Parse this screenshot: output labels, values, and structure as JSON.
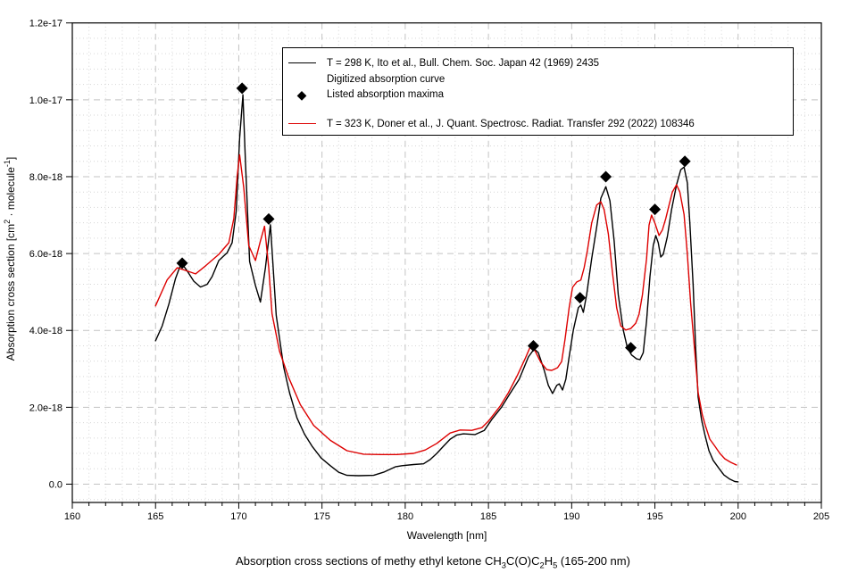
{
  "figure": {
    "title_segments": [
      {
        "t": "Absorption cross sections of methy ethyl ketone CH"
      },
      {
        "t": "3",
        "sub": true
      },
      {
        "t": "C(O)C"
      },
      {
        "t": "2",
        "sub": true
      },
      {
        "t": "H"
      },
      {
        "t": "5",
        "sub": true
      },
      {
        "t": " (165-200 nm)"
      }
    ]
  },
  "chart_data": {
    "type": "line",
    "title": "Absorption cross sections of methy ethyl ketone CH3C(O)C2H5 (165-200 nm)",
    "xlabel": "Wavelength [nm]",
    "ylabel": "Absorption cross section [cm2 · molecule-1]",
    "ylabel_segments": [
      {
        "t": "Absorption cross section [cm"
      },
      {
        "t": "2",
        "sup": true
      },
      {
        "t": " · molecule",
        "sup": false
      },
      {
        "t": "-1",
        "sup": true
      },
      {
        "t": "]",
        "sup": false
      }
    ],
    "grid": true,
    "legend_position": "top-center-inside",
    "x_axis": {
      "min": 160,
      "max": 205,
      "major_ticks": [
        160,
        165,
        170,
        175,
        180,
        185,
        190,
        195,
        200,
        205
      ],
      "minor_step": 1,
      "label": "Wavelength [nm]"
    },
    "y_axis": {
      "units": "1e-18 cm^2 / molecule",
      "min": -0.48,
      "max": 12,
      "major_ticks": [
        {
          "v": 0,
          "label": "0.0"
        },
        {
          "v": 2,
          "label": "2.0e-18"
        },
        {
          "v": 4,
          "label": "4.0e-18"
        },
        {
          "v": 6,
          "label": "6.0e-18"
        },
        {
          "v": 8,
          "label": "8.0e-18"
        },
        {
          "v": 10,
          "label": "1.0e-17"
        },
        {
          "v": 12,
          "label": "1.2e-17"
        }
      ],
      "minor_step": 0.4
    },
    "series": [
      {
        "name": "T = 298 K, Ito et al., Bull. Chem. Soc. Japan 42 (1969) 2435 — Digitized absorption curve",
        "color": "#000000",
        "points": [
          [
            165.0,
            3.73
          ],
          [
            165.4,
            4.12
          ],
          [
            165.8,
            4.68
          ],
          [
            166.2,
            5.35
          ],
          [
            166.55,
            5.76
          ],
          [
            166.9,
            5.55
          ],
          [
            167.3,
            5.28
          ],
          [
            167.7,
            5.13
          ],
          [
            168.1,
            5.2
          ],
          [
            168.4,
            5.4
          ],
          [
            168.8,
            5.82
          ],
          [
            169.3,
            6.02
          ],
          [
            169.6,
            6.28
          ],
          [
            169.85,
            7.1
          ],
          [
            170.05,
            9.0
          ],
          [
            170.25,
            10.13
          ],
          [
            170.4,
            8.4
          ],
          [
            170.65,
            5.79
          ],
          [
            171.0,
            5.17
          ],
          [
            171.3,
            4.74
          ],
          [
            171.6,
            5.63
          ],
          [
            171.9,
            6.75
          ],
          [
            172.25,
            4.39
          ],
          [
            172.7,
            3.04
          ],
          [
            173.05,
            2.38
          ],
          [
            173.5,
            1.72
          ],
          [
            173.95,
            1.3
          ],
          [
            174.4,
            0.99
          ],
          [
            174.95,
            0.68
          ],
          [
            175.5,
            0.48
          ],
          [
            176.0,
            0.31
          ],
          [
            176.5,
            0.23
          ],
          [
            177.2,
            0.22
          ],
          [
            178.1,
            0.23
          ],
          [
            178.7,
            0.31
          ],
          [
            179.4,
            0.45
          ],
          [
            179.8,
            0.48
          ],
          [
            180.5,
            0.51
          ],
          [
            181.1,
            0.53
          ],
          [
            181.5,
            0.64
          ],
          [
            181.9,
            0.8
          ],
          [
            182.3,
            0.99
          ],
          [
            182.7,
            1.17
          ],
          [
            183.1,
            1.28
          ],
          [
            183.5,
            1.31
          ],
          [
            184.2,
            1.29
          ],
          [
            184.75,
            1.4
          ],
          [
            185.2,
            1.68
          ],
          [
            185.8,
            2.01
          ],
          [
            186.3,
            2.36
          ],
          [
            186.85,
            2.73
          ],
          [
            187.4,
            3.31
          ],
          [
            187.75,
            3.52
          ],
          [
            188.0,
            3.42
          ],
          [
            188.35,
            2.96
          ],
          [
            188.6,
            2.57
          ],
          [
            188.85,
            2.36
          ],
          [
            189.1,
            2.57
          ],
          [
            189.25,
            2.61
          ],
          [
            189.45,
            2.45
          ],
          [
            189.65,
            2.73
          ],
          [
            189.85,
            3.31
          ],
          [
            190.1,
            4.01
          ],
          [
            190.4,
            4.59
          ],
          [
            190.55,
            4.66
          ],
          [
            190.7,
            4.47
          ],
          [
            190.9,
            4.93
          ],
          [
            191.2,
            5.86
          ],
          [
            191.5,
            6.68
          ],
          [
            191.75,
            7.44
          ],
          [
            192.05,
            7.74
          ],
          [
            192.3,
            7.37
          ],
          [
            192.55,
            6.33
          ],
          [
            192.8,
            4.93
          ],
          [
            193.1,
            4.01
          ],
          [
            193.35,
            3.54
          ],
          [
            193.6,
            3.36
          ],
          [
            193.9,
            3.26
          ],
          [
            194.1,
            3.24
          ],
          [
            194.3,
            3.42
          ],
          [
            194.5,
            4.24
          ],
          [
            194.7,
            5.4
          ],
          [
            194.9,
            6.21
          ],
          [
            195.05,
            6.47
          ],
          [
            195.2,
            6.28
          ],
          [
            195.35,
            5.91
          ],
          [
            195.5,
            5.98
          ],
          [
            195.75,
            6.44
          ],
          [
            196.0,
            7.14
          ],
          [
            196.3,
            7.79
          ],
          [
            196.55,
            8.18
          ],
          [
            196.75,
            8.25
          ],
          [
            196.95,
            7.84
          ],
          [
            197.1,
            6.79
          ],
          [
            197.3,
            5.17
          ],
          [
            197.45,
            3.54
          ],
          [
            197.6,
            2.26
          ],
          [
            197.8,
            1.68
          ],
          [
            198.0,
            1.29
          ],
          [
            198.25,
            0.87
          ],
          [
            198.5,
            0.62
          ],
          [
            198.85,
            0.41
          ],
          [
            199.15,
            0.24
          ],
          [
            199.5,
            0.13
          ],
          [
            199.8,
            0.07
          ],
          [
            200.0,
            0.06
          ]
        ]
      },
      {
        "name": "T = 323 K, Doner et al., J. Quant. Spectrosc. Radiat. Transfer 292 (2022) 108346",
        "color": "#dd0000",
        "points": [
          [
            165.0,
            4.64
          ],
          [
            165.7,
            5.32
          ],
          [
            166.3,
            5.63
          ],
          [
            166.8,
            5.56
          ],
          [
            167.4,
            5.47
          ],
          [
            168.0,
            5.68
          ],
          [
            168.8,
            5.98
          ],
          [
            169.4,
            6.28
          ],
          [
            169.7,
            6.91
          ],
          [
            169.9,
            8.0
          ],
          [
            170.05,
            8.57
          ],
          [
            170.3,
            7.72
          ],
          [
            170.6,
            6.21
          ],
          [
            171.0,
            5.82
          ],
          [
            171.3,
            6.33
          ],
          [
            171.55,
            6.71
          ],
          [
            171.8,
            5.63
          ],
          [
            172.0,
            4.43
          ],
          [
            172.45,
            3.46
          ],
          [
            173.0,
            2.77
          ],
          [
            173.7,
            2.07
          ],
          [
            174.5,
            1.53
          ],
          [
            175.5,
            1.14
          ],
          [
            176.5,
            0.87
          ],
          [
            177.5,
            0.78
          ],
          [
            178.5,
            0.77
          ],
          [
            179.5,
            0.77
          ],
          [
            180.5,
            0.8
          ],
          [
            181.2,
            0.89
          ],
          [
            181.9,
            1.06
          ],
          [
            182.7,
            1.33
          ],
          [
            183.3,
            1.41
          ],
          [
            184.0,
            1.4
          ],
          [
            184.6,
            1.47
          ],
          [
            185.0,
            1.64
          ],
          [
            185.7,
            2.03
          ],
          [
            186.2,
            2.38
          ],
          [
            186.75,
            2.84
          ],
          [
            187.2,
            3.26
          ],
          [
            187.5,
            3.56
          ],
          [
            187.8,
            3.47
          ],
          [
            188.15,
            3.17
          ],
          [
            188.5,
            2.98
          ],
          [
            188.8,
            2.96
          ],
          [
            189.15,
            3.03
          ],
          [
            189.4,
            3.19
          ],
          [
            189.6,
            3.77
          ],
          [
            189.85,
            4.59
          ],
          [
            190.05,
            5.12
          ],
          [
            190.3,
            5.26
          ],
          [
            190.55,
            5.31
          ],
          [
            190.75,
            5.63
          ],
          [
            190.95,
            6.09
          ],
          [
            191.2,
            6.79
          ],
          [
            191.5,
            7.26
          ],
          [
            191.75,
            7.35
          ],
          [
            191.95,
            7.14
          ],
          [
            192.2,
            6.51
          ],
          [
            192.45,
            5.51
          ],
          [
            192.7,
            4.59
          ],
          [
            192.95,
            4.12
          ],
          [
            193.25,
            4.01
          ],
          [
            193.55,
            4.05
          ],
          [
            193.85,
            4.19
          ],
          [
            194.05,
            4.42
          ],
          [
            194.25,
            4.93
          ],
          [
            194.5,
            5.86
          ],
          [
            194.65,
            6.74
          ],
          [
            194.8,
            7.0
          ],
          [
            195.0,
            6.79
          ],
          [
            195.25,
            6.47
          ],
          [
            195.45,
            6.61
          ],
          [
            195.65,
            6.91
          ],
          [
            195.85,
            7.26
          ],
          [
            196.05,
            7.6
          ],
          [
            196.3,
            7.79
          ],
          [
            196.5,
            7.6
          ],
          [
            196.75,
            7.02
          ],
          [
            196.95,
            5.98
          ],
          [
            197.15,
            4.7
          ],
          [
            197.4,
            3.42
          ],
          [
            197.6,
            2.38
          ],
          [
            197.85,
            1.8
          ],
          [
            198.05,
            1.5
          ],
          [
            198.3,
            1.17
          ],
          [
            198.6,
            0.99
          ],
          [
            198.9,
            0.8
          ],
          [
            199.2,
            0.66
          ],
          [
            199.55,
            0.57
          ],
          [
            199.9,
            0.5
          ]
        ]
      }
    ],
    "maxima": {
      "name": "Listed absorption maxima",
      "marker": "diamond",
      "color": "#000000",
      "points": [
        [
          166.6,
          5.75
        ],
        [
          170.2,
          10.3
        ],
        [
          171.8,
          6.9
        ],
        [
          187.7,
          3.6
        ],
        [
          190.5,
          4.85
        ],
        [
          192.05,
          8.0
        ],
        [
          193.55,
          3.55
        ],
        [
          195.0,
          7.15
        ],
        [
          196.8,
          8.4
        ]
      ]
    },
    "legend": {
      "rows": [
        {
          "sample": "line",
          "color": "#000000",
          "label": "T = 298 K, Ito et al., Bull. Chem. Soc. Japan 42 (1969) 2435"
        },
        {
          "sample": "none",
          "color": "#000000",
          "label": "Digitized absorption curve"
        },
        {
          "sample": "diamond",
          "color": "#000000",
          "label": "Listed absorption maxima",
          "marker_glyph": "◆"
        },
        {
          "sample": "line",
          "color": "#dd0000",
          "label": "T = 323 K, Doner et al., J. Quant. Spectrosc. Radiat. Transfer 292 (2022) 108346"
        }
      ]
    },
    "colors": {
      "grid_major": "#c3c3c3",
      "grid_minor": "#d6d6d6",
      "frame": "#000000",
      "series_298K": "#000000",
      "series_323K": "#dd0000"
    }
  }
}
